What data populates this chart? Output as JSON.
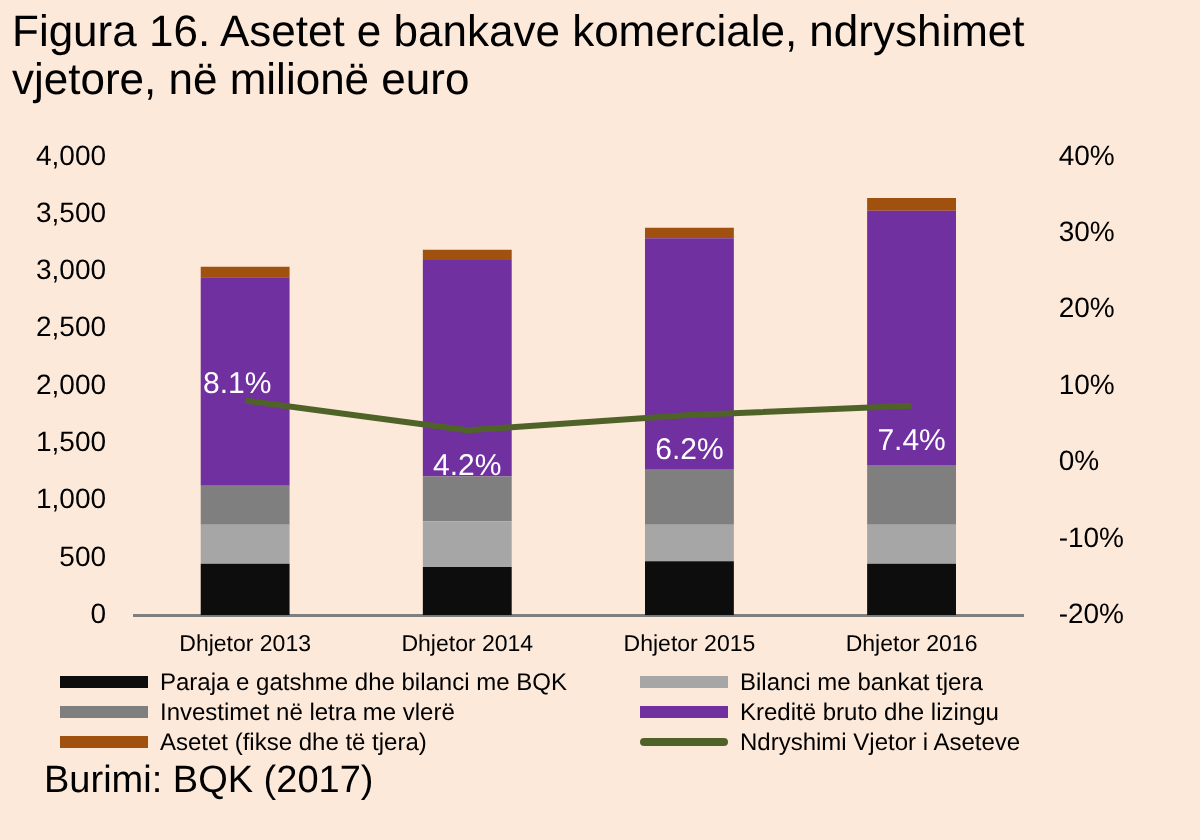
{
  "chart_data": {
    "type": "bar",
    "stacked": true,
    "title": "Figura 16. Asetet e bankave  komerciale, ndryshimet vjetore, në milionë euro",
    "categories": [
      "Dhjetor 2013",
      "Dhjetor 2014",
      "Dhjetor 2015",
      "Dhjetor 2016"
    ],
    "series": [
      {
        "name": "Paraja e gatshme dhe bilanci me BQK",
        "color": "#0d0d0d",
        "values": [
          450,
          420,
          470,
          450
        ]
      },
      {
        "name": "Bilanci me bankat tjera",
        "color": "#a6a6a6",
        "values": [
          340,
          400,
          320,
          340
        ]
      },
      {
        "name": "Investimet në letra me vlerë",
        "color": "#7f7f7f",
        "values": [
          340,
          390,
          480,
          520
        ]
      },
      {
        "name": "Kreditë bruto dhe lizingu",
        "color": "#7030a0",
        "values": [
          1820,
          1890,
          2020,
          2220
        ]
      },
      {
        "name": "Asetet (fikse dhe të tjera)",
        "color": "#a0500f",
        "values": [
          90,
          90,
          90,
          110
        ]
      },
      {
        "name": "Ndryshimi Vjetor i Aseteve",
        "type": "line",
        "axis": "y2",
        "color": "#4f6228",
        "values": [
          8.1,
          4.2,
          6.2,
          7.4
        ],
        "value_labels": [
          "8.1%",
          "4.2%",
          "6.2%",
          "7.4%"
        ]
      }
    ],
    "ylim": [
      0,
      4000
    ],
    "yticks": [
      0,
      500,
      {
        "value": 1000,
        "label": "1,000"
      },
      {
        "value": 1500,
        "label": "1,500"
      },
      {
        "value": 2000,
        "label": "2,000"
      },
      {
        "value": 2500,
        "label": "2,500"
      },
      {
        "value": 3000,
        "label": "3,000"
      },
      {
        "value": 3500,
        "label": "3,500"
      },
      {
        "value": 4000,
        "label": "4,000"
      }
    ],
    "y2lim": [
      -20,
      40
    ],
    "y2ticks": [
      {
        "value": -20,
        "label": "-20%"
      },
      {
        "value": -10,
        "label": "-10%"
      },
      {
        "value": 0,
        "label": "0%"
      },
      {
        "value": 10,
        "label": "10%"
      },
      {
        "value": 20,
        "label": "20%"
      },
      {
        "value": 30,
        "label": "30%"
      },
      {
        "value": 40,
        "label": "40%"
      }
    ],
    "grid": false,
    "legend": "bottom",
    "marker": "none",
    "annotations": [
      "Burimi: BQK (2017)"
    ]
  }
}
